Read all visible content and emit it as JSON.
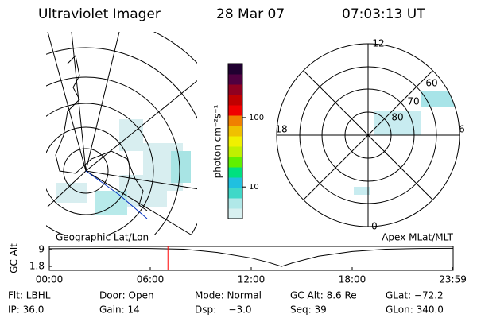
{
  "header": {
    "title": "Ultraviolet Imager",
    "date": "28 Mar 07",
    "time": "07:03:13 UT"
  },
  "left_map": {
    "label": "Geographic Lat/Lon"
  },
  "right_map": {
    "label": "Apex MLat/MLT",
    "mlt_labels": [
      "12",
      "18",
      "6",
      "0"
    ],
    "lat_labels": [
      "60",
      "70",
      "80"
    ]
  },
  "chart_data": [
    {
      "type": "colorbar",
      "label": "photon cm⁻²s⁻¹",
      "log": true,
      "ylim": [
        3.5,
        600
      ],
      "yticks": [
        10,
        100
      ],
      "colors": [
        "#d8f0f0",
        "#b0e8e8",
        "#40d8c8",
        "#20c0e0",
        "#00e080",
        "#60f000",
        "#c0f000",
        "#f0f000",
        "#f0c000",
        "#f08000",
        "#f00000",
        "#c00000",
        "#900020",
        "#500040",
        "#200030"
      ]
    },
    {
      "type": "line",
      "ylabel": "GC Alt",
      "xlim": [
        0,
        24
      ],
      "ylim": [
        0.1,
        10.4
      ],
      "yticks": [
        9.0,
        1.8
      ],
      "xticks": [
        {
          "value": 0,
          "label": "00:00"
        },
        {
          "value": 6,
          "label": "06:00"
        },
        {
          "value": 12,
          "label": "12:00"
        },
        {
          "value": 18,
          "label": "18:00"
        },
        {
          "value": 23.98,
          "label": "23:59"
        }
      ],
      "x": [
        0,
        2,
        4,
        6,
        8,
        10,
        12,
        13,
        13.8,
        14.5,
        16,
        18,
        20,
        22,
        23.98
      ],
      "values": [
        9.4,
        9.5,
        9.6,
        9.5,
        9.2,
        7.8,
        5.4,
        3.6,
        1.8,
        3.4,
        6.2,
        8.2,
        9.2,
        9.5,
        9.6
      ],
      "color": "#000000",
      "marker_x": 7.05,
      "marker_color": "#ff0000"
    }
  ],
  "footer": {
    "items": [
      "Flt: LBHL",
      "Door: Open",
      "Mode: Normal",
      "GC Alt: 8.6 Re",
      "GLat: −72.2",
      "IP: 36.0",
      "Gain: 14",
      "Dsp:    −3.0",
      "Seq: 39",
      "GLon: 340.0"
    ]
  }
}
